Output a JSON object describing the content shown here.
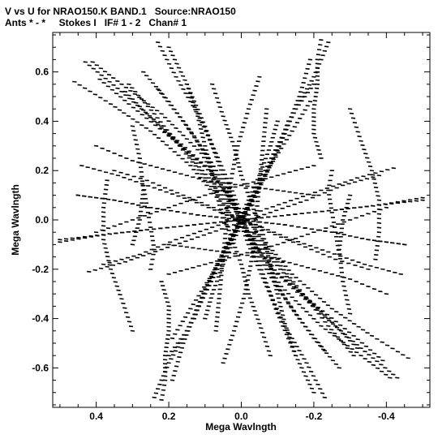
{
  "header": {
    "title_line1": "V vs U for NRAO150.K BAND.1   Source:NRAO150",
    "title_line2": "Ants * - *     Stokes I   IF# 1 - 2   Chan# 1"
  },
  "chart_data": {
    "type": "scatter",
    "xlabel": "Mega Wavlngth",
    "ylabel": "Mega Wavlngth",
    "xlim": [
      0.52,
      -0.52
    ],
    "ylim": [
      -0.76,
      0.76
    ],
    "x_ticks": [
      0.4,
      0.2,
      0.0,
      -0.2,
      -0.4
    ],
    "x_tick_labels": [
      "0.4",
      "0.2",
      "0.0",
      "-0.2",
      "-0.4"
    ],
    "y_ticks": [
      0.6,
      0.4,
      0.2,
      0.0,
      -0.2,
      -0.4,
      -0.6
    ],
    "y_tick_labels": [
      "0.6",
      "0.4",
      "0.2",
      "0.0",
      "-0.2",
      "-0.4",
      "-0.6"
    ],
    "grid": false,
    "marker_color": "#000000",
    "tracks": [
      {
        "name": "track-a",
        "points": [
          [
            0.41,
            0.64
          ],
          [
            0.33,
            0.55
          ],
          [
            0.22,
            0.43
          ],
          [
            0.11,
            0.27
          ],
          [
            0.03,
            0.08
          ],
          [
            -0.02,
            -0.05
          ],
          [
            -0.1,
            -0.22
          ],
          [
            -0.22,
            -0.38
          ],
          [
            -0.33,
            -0.52
          ],
          [
            -0.43,
            -0.64
          ]
        ]
      },
      {
        "name": "track-b",
        "points": [
          [
            0.46,
            0.56
          ],
          [
            0.36,
            0.47
          ],
          [
            0.25,
            0.36
          ],
          [
            0.14,
            0.22
          ],
          [
            0.05,
            0.06
          ],
          [
            0.0,
            -0.03
          ],
          [
            -0.08,
            -0.19
          ],
          [
            -0.2,
            -0.34
          ],
          [
            -0.31,
            -0.47
          ],
          [
            -0.39,
            -0.57
          ]
        ]
      },
      {
        "name": "track-c",
        "points": [
          [
            0.23,
            0.72
          ],
          [
            0.18,
            0.58
          ],
          [
            0.12,
            0.43
          ],
          [
            0.07,
            0.27
          ],
          [
            0.02,
            0.1
          ],
          [
            -0.02,
            -0.06
          ],
          [
            -0.06,
            -0.22
          ],
          [
            -0.1,
            -0.38
          ],
          [
            -0.15,
            -0.55
          ],
          [
            -0.2,
            -0.7
          ]
        ]
      },
      {
        "name": "track-d",
        "points": [
          [
            0.27,
            0.6
          ],
          [
            0.2,
            0.48
          ],
          [
            0.13,
            0.34
          ],
          [
            0.07,
            0.2
          ],
          [
            0.02,
            0.05
          ],
          [
            -0.03,
            -0.1
          ],
          [
            -0.09,
            -0.25
          ],
          [
            -0.16,
            -0.4
          ],
          [
            -0.23,
            -0.53
          ]
        ]
      },
      {
        "name": "track-e",
        "points": [
          [
            -0.05,
            0.58
          ],
          [
            -0.02,
            0.45
          ],
          [
            0.01,
            0.3
          ],
          [
            0.03,
            0.15
          ],
          [
            0.04,
            0.0
          ],
          [
            0.05,
            -0.15
          ],
          [
            0.06,
            -0.3
          ],
          [
            0.07,
            -0.45
          ]
        ]
      },
      {
        "name": "track-f",
        "points": [
          [
            -0.24,
            0.72
          ],
          [
            -0.2,
            0.58
          ],
          [
            -0.15,
            0.45
          ],
          [
            -0.1,
            0.3
          ],
          [
            -0.05,
            0.15
          ],
          [
            0.0,
            0.0
          ],
          [
            0.05,
            -0.15
          ],
          [
            0.1,
            -0.3
          ],
          [
            0.15,
            -0.45
          ],
          [
            0.2,
            -0.55
          ]
        ]
      },
      {
        "name": "track-g",
        "points": [
          [
            -0.19,
            0.65
          ],
          [
            -0.16,
            0.5
          ],
          [
            -0.12,
            0.35
          ],
          [
            -0.07,
            0.2
          ],
          [
            -0.02,
            0.06
          ],
          [
            0.03,
            -0.08
          ],
          [
            0.08,
            -0.22
          ],
          [
            0.14,
            -0.36
          ],
          [
            0.19,
            -0.48
          ]
        ]
      },
      {
        "name": "track-h",
        "points": [
          [
            0.45,
            0.1
          ],
          [
            0.35,
            0.08
          ],
          [
            0.25,
            0.05
          ],
          [
            0.12,
            0.02
          ],
          [
            0.0,
            0.0
          ],
          [
            -0.12,
            -0.02
          ],
          [
            -0.25,
            -0.05
          ],
          [
            -0.35,
            -0.08
          ],
          [
            -0.45,
            -0.1
          ]
        ]
      },
      {
        "name": "track-i",
        "points": [
          [
            0.5,
            -0.09
          ],
          [
            0.38,
            -0.06
          ],
          [
            0.26,
            -0.04
          ],
          [
            0.13,
            -0.02
          ],
          [
            0.0,
            0.0
          ],
          [
            -0.13,
            0.02
          ],
          [
            -0.26,
            0.04
          ],
          [
            -0.38,
            0.06
          ],
          [
            -0.5,
            0.08
          ]
        ]
      },
      {
        "name": "track-j",
        "points": [
          [
            0.35,
            0.2
          ],
          [
            0.26,
            0.16
          ],
          [
            0.16,
            0.1
          ],
          [
            0.06,
            0.04
          ],
          [
            -0.04,
            -0.02
          ],
          [
            -0.14,
            -0.08
          ],
          [
            -0.24,
            -0.13
          ],
          [
            -0.34,
            -0.18
          ],
          [
            -0.44,
            -0.22
          ]
        ]
      },
      {
        "name": "track-k",
        "points": [
          [
            0.38,
            -0.18
          ],
          [
            0.28,
            -0.14
          ],
          [
            0.18,
            -0.08
          ],
          [
            0.08,
            -0.03
          ],
          [
            -0.02,
            0.02
          ],
          [
            -0.12,
            0.07
          ],
          [
            -0.22,
            0.12
          ],
          [
            -0.32,
            0.17
          ],
          [
            -0.42,
            0.21
          ]
        ]
      },
      {
        "name": "track-l",
        "points": [
          [
            0.22,
            -0.25
          ],
          [
            0.2,
            -0.35
          ],
          [
            0.2,
            -0.45
          ],
          [
            0.21,
            -0.55
          ],
          [
            0.21,
            -0.65
          ],
          [
            0.22,
            -0.73
          ]
        ]
      },
      {
        "name": "track-m",
        "points": [
          [
            -0.25,
            0.2
          ],
          [
            -0.24,
            0.12
          ],
          [
            -0.25,
            0.03
          ],
          [
            -0.26,
            -0.05
          ],
          [
            -0.27,
            -0.14
          ]
        ]
      },
      {
        "name": "track-n",
        "points": [
          [
            0.3,
            0.38
          ],
          [
            0.28,
            0.25
          ],
          [
            0.27,
            0.12
          ],
          [
            0.28,
            0.0
          ],
          [
            0.3,
            -0.1
          ]
        ]
      },
      {
        "name": "track-o",
        "points": [
          [
            -0.3,
            0.45
          ],
          [
            -0.33,
            0.32
          ],
          [
            -0.36,
            0.2
          ],
          [
            -0.38,
            0.08
          ],
          [
            -0.38,
            -0.05
          ],
          [
            -0.37,
            -0.16
          ]
        ]
      },
      {
        "name": "track-p",
        "points": [
          [
            0.15,
            0.55
          ],
          [
            0.12,
            0.42
          ],
          [
            0.1,
            0.3
          ],
          [
            0.08,
            0.18
          ],
          [
            0.06,
            0.06
          ],
          [
            0.03,
            -0.06
          ],
          [
            0.0,
            -0.18
          ],
          [
            -0.02,
            -0.3
          ],
          [
            -0.05,
            -0.42
          ],
          [
            -0.08,
            -0.55
          ]
        ]
      },
      {
        "name": "track-q",
        "points": [
          [
            -0.1,
            0.4
          ],
          [
            -0.08,
            0.3
          ],
          [
            -0.05,
            0.18
          ],
          [
            -0.02,
            0.08
          ],
          [
            0.02,
            -0.04
          ],
          [
            0.06,
            -0.16
          ],
          [
            0.1,
            -0.28
          ],
          [
            0.13,
            -0.4
          ]
        ]
      },
      {
        "name": "track-r",
        "points": [
          [
            0.4,
            -0.05
          ],
          [
            0.3,
            0.0
          ],
          [
            0.2,
            0.05
          ],
          [
            0.1,
            0.1
          ],
          [
            0.0,
            0.14
          ],
          [
            -0.1,
            0.18
          ],
          [
            -0.2,
            0.22
          ]
        ]
      },
      {
        "name": "track-s",
        "points": [
          [
            0.2,
            -0.1
          ],
          [
            0.1,
            -0.12
          ],
          [
            0.0,
            -0.14
          ],
          [
            -0.1,
            -0.16
          ],
          [
            -0.2,
            -0.2
          ],
          [
            -0.3,
            -0.24
          ],
          [
            -0.4,
            -0.3
          ]
        ]
      },
      {
        "name": "track-t",
        "points": [
          [
            0.32,
            0.52
          ],
          [
            0.24,
            0.4
          ],
          [
            0.16,
            0.29
          ],
          [
            0.09,
            0.17
          ],
          [
            0.03,
            0.05
          ]
        ]
      },
      {
        "name": "track-u",
        "points": [
          [
            -0.04,
            -0.05
          ],
          [
            -0.1,
            -0.17
          ],
          [
            -0.17,
            -0.3
          ],
          [
            -0.24,
            -0.43
          ],
          [
            -0.31,
            -0.55
          ]
        ]
      }
    ]
  }
}
